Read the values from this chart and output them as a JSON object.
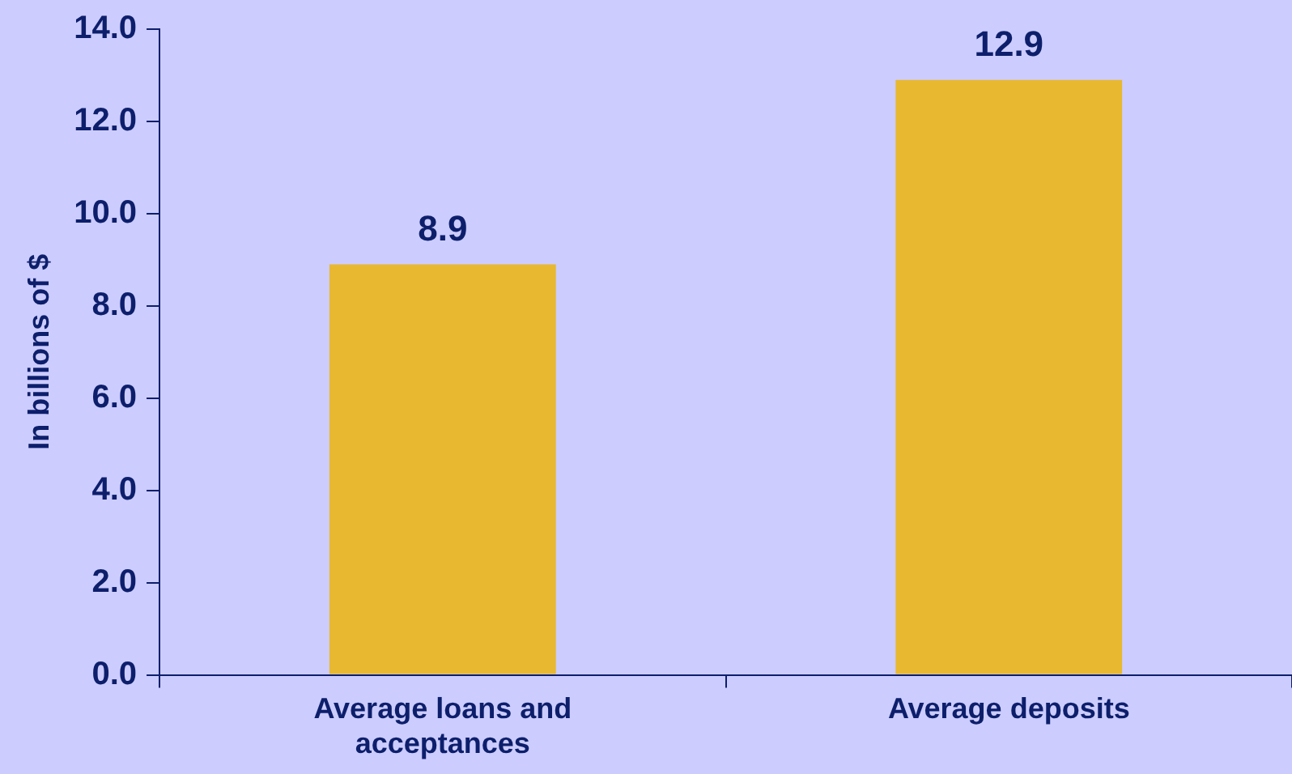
{
  "chart_data": {
    "type": "bar",
    "ylabel": "In billions of $",
    "categories": [
      "Average loans and acceptances",
      "Average deposits"
    ],
    "values": [
      8.9,
      12.9
    ],
    "color": "#e8b830",
    "ylim": [
      0,
      14
    ],
    "yticks": [
      {
        "value": 0,
        "label": "0.0"
      },
      {
        "value": 2,
        "label": "2.0"
      },
      {
        "value": 4,
        "label": "4.0"
      },
      {
        "value": 6,
        "label": "6.0"
      },
      {
        "value": 8,
        "label": "8.0"
      },
      {
        "value": 10,
        "label": "10.0"
      },
      {
        "value": 12,
        "label": "12.0"
      },
      {
        "value": 14,
        "label": "14.0"
      }
    ],
    "grid": false,
    "legend": false,
    "data_labels": true
  }
}
